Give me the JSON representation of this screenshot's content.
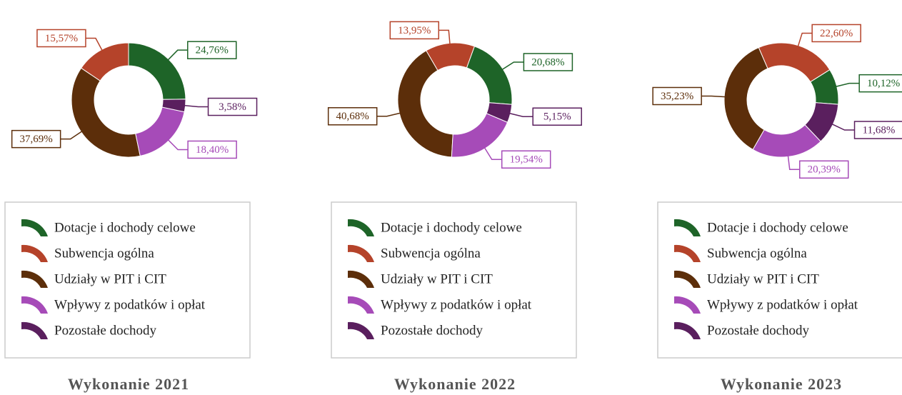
{
  "chart_data": [
    {
      "type": "pie",
      "donut": true,
      "title": "Wykonanie 2021",
      "categories": [
        "Dotacje i dochody celowe",
        "Subwencja ogólna",
        "Udziały w PIT i CIT",
        "Wpływy z podatków i opłat",
        "Pozostałe dochody"
      ],
      "values": [
        24.76,
        15.57,
        37.69,
        18.4,
        3.58
      ],
      "value_labels": [
        "24,76%",
        "15,57%",
        "37,69%",
        "18,40%",
        "3,58%"
      ],
      "colors": [
        "#1e6428",
        "#b5432a",
        "#5c2e0a",
        "#a64bb8",
        "#5a1f5e"
      ]
    },
    {
      "type": "pie",
      "donut": true,
      "title": "Wykonanie 2022",
      "categories": [
        "Dotacje i dochody celowe",
        "Subwencja ogólna",
        "Udziały w PIT i CIT",
        "Wpływy z podatków i opłat",
        "Pozostałe dochody"
      ],
      "values": [
        20.68,
        13.95,
        40.68,
        19.54,
        5.15
      ],
      "value_labels": [
        "20,68%",
        "13,95%",
        "40,68%",
        "19,54%",
        "5,15%"
      ],
      "colors": [
        "#1e6428",
        "#b5432a",
        "#5c2e0a",
        "#a64bb8",
        "#5a1f5e"
      ]
    },
    {
      "type": "pie",
      "donut": true,
      "title": "Wykonanie 2023",
      "categories": [
        "Dotacje i dochody celowe",
        "Subwencja ogólna",
        "Udziały w PIT i CIT",
        "Wpływy z podatków i opłat",
        "Pozostałe dochody"
      ],
      "values": [
        10.12,
        22.6,
        35.23,
        20.39,
        11.68
      ],
      "value_labels": [
        "10,12%",
        "22,60%",
        "35,23%",
        "20,39%",
        "11,68%"
      ],
      "colors": [
        "#1e6428",
        "#b5432a",
        "#5c2e0a",
        "#a64bb8",
        "#5a1f5e"
      ]
    }
  ]
}
